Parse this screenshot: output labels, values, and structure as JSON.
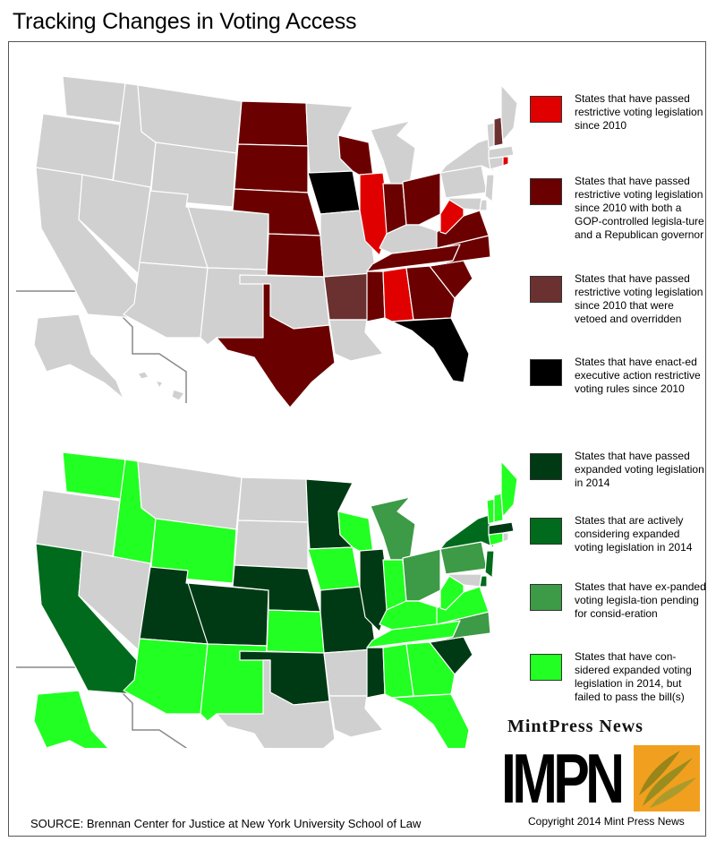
{
  "title": "Tracking Changes in Voting Access",
  "colors": {
    "state_default": "#d0d0d0",
    "restrictive_red": "#e00000",
    "restrictive_dark": "#6b0000",
    "restrictive_override": "#6b3030",
    "restrictive_exec": "#000000",
    "expanded_passed": "#003a14",
    "expanded_considering": "#006b1c",
    "expanded_pending": "#3d9a46",
    "expanded_failed": "#22ff22",
    "logo_orange": "#f0a01e"
  },
  "top_map": {
    "name": "restrictive-voting-map",
    "legend": [
      {
        "label": "States that have passed restrictive voting legislation since 2010",
        "color": "#e00000"
      },
      {
        "label": "States that have passed restrictive voting legislation since 2010 with both a GOP-controlled legisla-ture and a Republican governor",
        "color": "#6b0000"
      },
      {
        "label": "States that have passed restrictive voting legislation since 2010 that were vetoed and overridden",
        "color": "#6b3030"
      },
      {
        "label": "States that have enact-ed executive action restrictive voting rules since 2010",
        "color": "#000000"
      }
    ]
  },
  "bottom_map": {
    "name": "expanded-voting-map",
    "legend": [
      {
        "label": "States that have passed expanded voting legislation in 2014",
        "color": "#003a14"
      },
      {
        "label": "States that are actively considering expanded voting legislation in 2014",
        "color": "#006b1c"
      },
      {
        "label": "States that have ex-panded voting legisla-tion pending for consid-eration",
        "color": "#3d9a46"
      },
      {
        "label": "States that have con-sidered expanded voting legislation in 2014, but failed to pass the bill(s)",
        "color": "#22ff22"
      }
    ]
  },
  "source": "SOURCE: Brennan Center for Justice at New York University School of Law",
  "brand": {
    "name": "MintPress News",
    "logo_letters": "IMPN",
    "copyright": "Copyright 2014 Mint Press News"
  }
}
